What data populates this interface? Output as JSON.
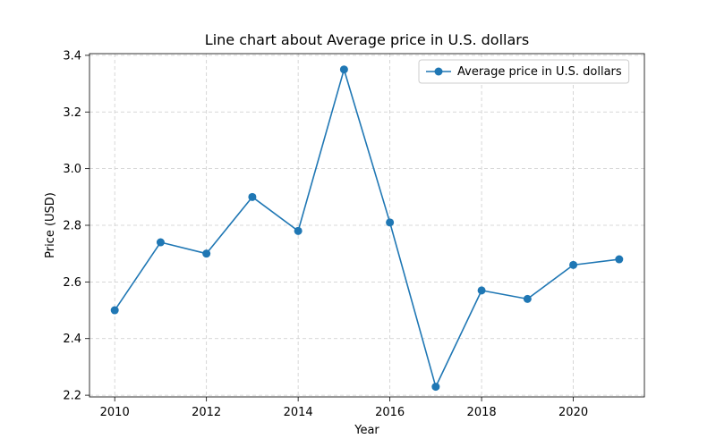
{
  "chart_data": {
    "type": "line",
    "title": "Line chart about Average price in U.S. dollars",
    "xlabel": "Year",
    "ylabel": "Price (USD)",
    "xlim": [
      2009.45,
      2021.55
    ],
    "ylim": [
      2.194,
      3.406
    ],
    "xticks": [
      2010,
      2012,
      2014,
      2016,
      2018,
      2020
    ],
    "yticks": [
      2.2,
      2.4,
      2.6,
      2.8,
      3.0,
      3.2,
      3.4
    ],
    "ytick_labels": [
      "2.2",
      "2.4",
      "2.6",
      "2.8",
      "3.0",
      "3.2",
      "3.4"
    ],
    "grid": true,
    "legend_position": "top-right",
    "x": [
      2010,
      2011,
      2012,
      2013,
      2014,
      2015,
      2016,
      2017,
      2018,
      2019,
      2020,
      2021
    ],
    "series": [
      {
        "name": "Average price in U.S. dollars",
        "color": "#1f77b4",
        "values": [
          2.5,
          2.74,
          2.7,
          2.9,
          2.78,
          3.35,
          2.81,
          2.23,
          2.57,
          2.54,
          2.66,
          2.68
        ]
      }
    ]
  }
}
